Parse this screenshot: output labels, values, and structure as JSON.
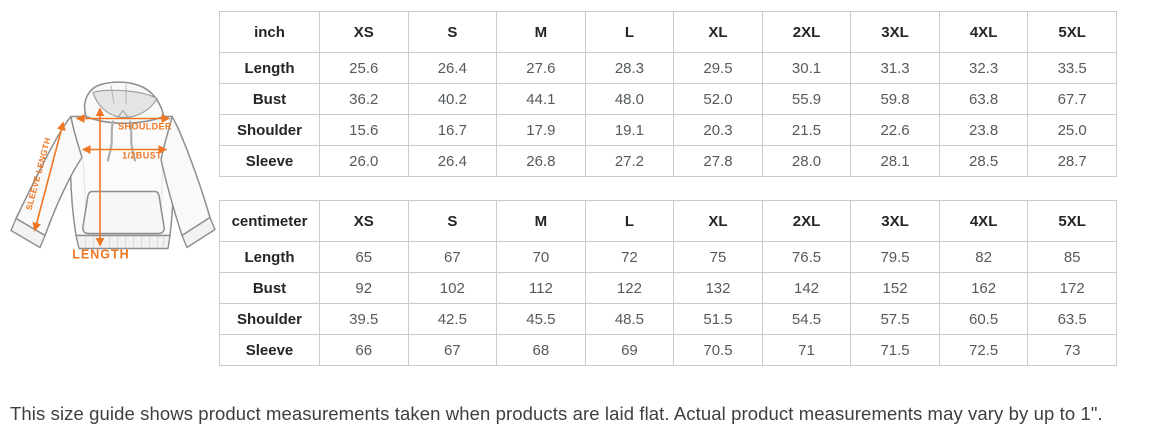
{
  "diagram": {
    "accent_color": "#ee7623",
    "labels": {
      "shoulder": "SHOULDER",
      "half_bust": "1/2BUST",
      "sleeve_length": "SLEEVE LENGTH",
      "length": "LENGTH"
    }
  },
  "tables": [
    {
      "unit_label": "inch",
      "size_headers": [
        "XS",
        "S",
        "M",
        "L",
        "XL",
        "2XL",
        "3XL",
        "4XL",
        "5XL"
      ],
      "rows": [
        {
          "label": "Length",
          "values": [
            "25.6",
            "26.4",
            "27.6",
            "28.3",
            "29.5",
            "30.1",
            "31.3",
            "32.3",
            "33.5"
          ]
        },
        {
          "label": "Bust",
          "values": [
            "36.2",
            "40.2",
            "44.1",
            "48.0",
            "52.0",
            "55.9",
            "59.8",
            "63.8",
            "67.7"
          ]
        },
        {
          "label": "Shoulder",
          "values": [
            "15.6",
            "16.7",
            "17.9",
            "19.1",
            "20.3",
            "21.5",
            "22.6",
            "23.8",
            "25.0"
          ]
        },
        {
          "label": "Sleeve",
          "values": [
            "26.0",
            "26.4",
            "26.8",
            "27.2",
            "27.8",
            "28.0",
            "28.1",
            "28.5",
            "28.7"
          ]
        }
      ]
    },
    {
      "unit_label": "centimeter",
      "size_headers": [
        "XS",
        "S",
        "M",
        "L",
        "XL",
        "2XL",
        "3XL",
        "4XL",
        "5XL"
      ],
      "rows": [
        {
          "label": "Length",
          "values": [
            "65",
            "67",
            "70",
            "72",
            "75",
            "76.5",
            "79.5",
            "82",
            "85"
          ]
        },
        {
          "label": "Bust",
          "values": [
            "92",
            "102",
            "112",
            "122",
            "132",
            "142",
            "152",
            "162",
            "172"
          ]
        },
        {
          "label": "Shoulder",
          "values": [
            "39.5",
            "42.5",
            "45.5",
            "48.5",
            "51.5",
            "54.5",
            "57.5",
            "60.5",
            "63.5"
          ]
        },
        {
          "label": "Sleeve",
          "values": [
            "66",
            "67",
            "68",
            "69",
            "70.5",
            "71",
            "71.5",
            "72.5",
            "73"
          ]
        }
      ]
    }
  ],
  "note": "This size guide shows product measurements taken when products are laid flat. Actual product measurements may vary by up to 1\"."
}
